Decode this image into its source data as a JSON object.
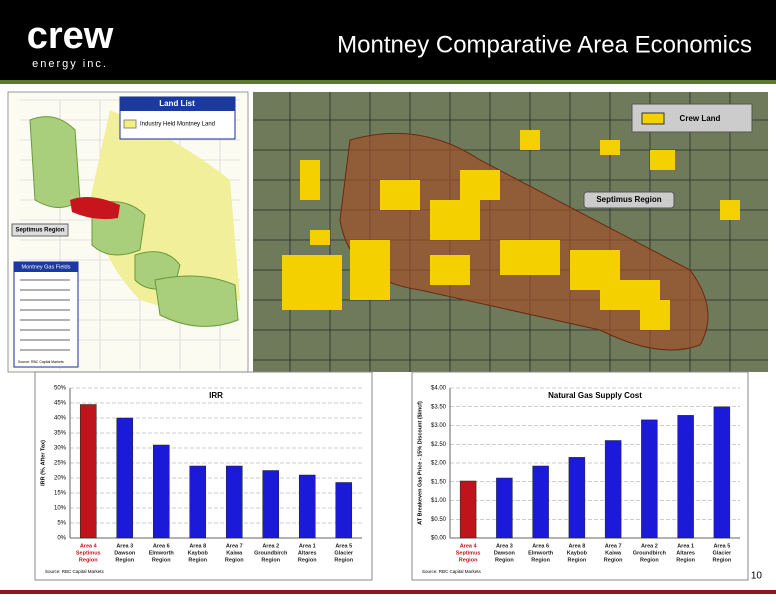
{
  "header": {
    "logo": "crew",
    "logo_sub": "energy inc.",
    "title": "Montney Comparative Area Economics"
  },
  "map_left": {
    "legend_title": "Land List",
    "legend_item": "Industry Held Montney Land",
    "callout": "Septimus Region",
    "fields_title": "Montney Gas Fields",
    "source": "Source: RBC Capital Markets"
  },
  "map_right": {
    "legend_item": "Crew Land",
    "callout": "Septimus Region"
  },
  "page_number": "10",
  "chart_data": [
    {
      "type": "bar",
      "title": "IRR",
      "y_label": "IRR (%, After Tax)",
      "source": "Source: RBC Capital Markets",
      "categories": [
        [
          "Area 4",
          "Septimus",
          "Region"
        ],
        [
          "Area 3",
          "Dawson",
          "Region"
        ],
        [
          "Area 6",
          "Elmworth",
          "Region"
        ],
        [
          "Area 8",
          "Kaybob",
          "Region"
        ],
        [
          "Area 7",
          "Kaiwa",
          "Region"
        ],
        [
          "Area 2",
          "Groundbirch",
          "Region"
        ],
        [
          "Area 1",
          "Altares",
          "Region"
        ],
        [
          "Area 5",
          "Glacier",
          "Region"
        ]
      ],
      "values": [
        44.5,
        40,
        31,
        24,
        24,
        22.5,
        21,
        18.5
      ],
      "colors": [
        "#c0141c",
        "#1a1ad8",
        "#1a1ad8",
        "#1a1ad8",
        "#1a1ad8",
        "#1a1ad8",
        "#1a1ad8",
        "#1a1ad8"
      ],
      "ylim": [
        0,
        50
      ],
      "yticks": [
        {
          "value": 0,
          "label": "0%"
        },
        {
          "value": 5,
          "label": "5%"
        },
        {
          "value": 10,
          "label": "10%"
        },
        {
          "value": 15,
          "label": "15%"
        },
        {
          "value": 20,
          "label": "20%"
        },
        {
          "value": 25,
          "label": "25%"
        },
        {
          "value": 30,
          "label": "30%"
        },
        {
          "value": 35,
          "label": "35%"
        },
        {
          "value": 40,
          "label": "40%"
        },
        {
          "value": 45,
          "label": "45%"
        },
        {
          "value": 50,
          "label": "50%"
        }
      ],
      "grid": true
    },
    {
      "type": "bar",
      "title": "Natural Gas Supply Cost",
      "y_label": "AT Breakeven Gas Price - 15% Discount ($/mcf)",
      "source": "Source: RBC Capital Markets",
      "categories": [
        [
          "Area 4",
          "Septimus",
          "Region"
        ],
        [
          "Area 3",
          "Dawson",
          "Region"
        ],
        [
          "Area 6",
          "Elmworth",
          "Region"
        ],
        [
          "Area 8",
          "Kaybob",
          "Region"
        ],
        [
          "Area 7",
          "Kaiwa",
          "Region"
        ],
        [
          "Area 2",
          "Groundbirch",
          "Region"
        ],
        [
          "Area 1",
          "Altares",
          "Region"
        ],
        [
          "Area 5",
          "Glacier",
          "Region"
        ]
      ],
      "values": [
        1.52,
        1.6,
        1.92,
        2.15,
        2.6,
        3.15,
        3.27,
        3.5
      ],
      "colors": [
        "#c0141c",
        "#1a1ad8",
        "#1a1ad8",
        "#1a1ad8",
        "#1a1ad8",
        "#1a1ad8",
        "#1a1ad8",
        "#1a1ad8"
      ],
      "ylim": [
        0,
        4
      ],
      "yticks": [
        {
          "value": 0,
          "label": "$0.00"
        },
        {
          "value": 0.5,
          "label": "$0.50"
        },
        {
          "value": 1,
          "label": "$1.00"
        },
        {
          "value": 1.5,
          "label": "$1.50"
        },
        {
          "value": 2,
          "label": "$2.00"
        },
        {
          "value": 2.5,
          "label": "$2.50"
        },
        {
          "value": 3,
          "label": "$3.00"
        },
        {
          "value": 3.5,
          "label": "$3.50"
        },
        {
          "value": 4,
          "label": "$4.00"
        }
      ],
      "grid": true
    }
  ]
}
